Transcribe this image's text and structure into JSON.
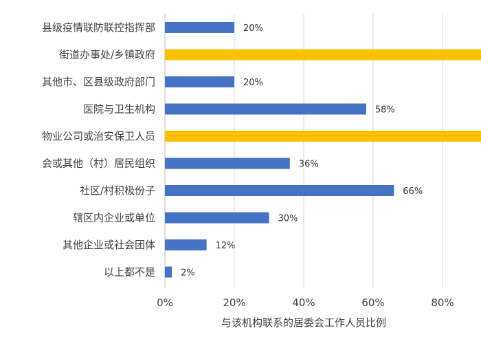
{
  "chart_data": {
    "type": "bar",
    "orientation": "horizontal",
    "categories": [
      "县级疫情联防联控指挥部",
      "街道办事处/乡镇政府",
      "其他市、区县级政府部门",
      "医院与卫生机构",
      "物业公司或治安保卫人员",
      "会或其他（村）居民组织",
      "社区/村积极份子",
      "辖区内企业或单位",
      "其他企业或社会团体",
      "以上都不是"
    ],
    "values": [
      20,
      100,
      20,
      58,
      100,
      36,
      66,
      30,
      12,
      2
    ],
    "value_labels": [
      "20%",
      "",
      "20%",
      "58%",
      "",
      "36%",
      "66%",
      "30%",
      "12%",
      "2%"
    ],
    "highlight": [
      false,
      true,
      false,
      false,
      true,
      false,
      false,
      false,
      false,
      false
    ],
    "xlabel": "与该机构联系的居委会工作人员比例",
    "xlim": [
      0,
      100
    ],
    "x_ticks": [
      "0%",
      "20%",
      "40%",
      "60%",
      "80%"
    ],
    "x_tick_values": [
      0,
      20,
      40,
      60,
      80
    ],
    "grid": true,
    "colors": {
      "bar": "#4472C4",
      "highlight": "#FFC000",
      "grid": "#D9D9D9",
      "axis": "#BFBFBF"
    }
  }
}
